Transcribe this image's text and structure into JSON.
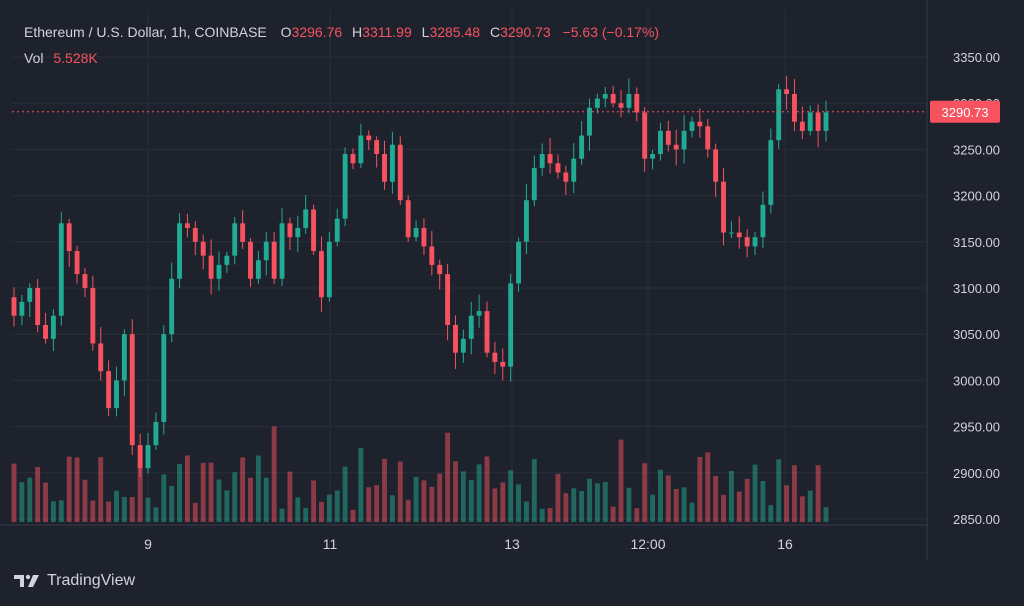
{
  "header": {
    "symbol": "Ethereum / U.S. Dollar, 1h, COINBASE",
    "o_label": "O",
    "open": "3296.76",
    "h_label": "H",
    "high": "3311.99",
    "l_label": "L",
    "low": "3285.48",
    "c_label": "C",
    "close": "3290.73",
    "change": "−5.63 (−0.17%)"
  },
  "volume": {
    "label": "Vol",
    "value": "5.528K"
  },
  "brand": {
    "name": "TradingView",
    "logo_icon": "tradingview-logo-icon"
  },
  "colors": {
    "up": "#22ab94",
    "down": "#f7525f",
    "background": "#1e222d",
    "grid": "#2a2e39",
    "text": "#d1d4dc"
  },
  "chart_data": {
    "type": "candlestick",
    "symbol": "ETH/USD",
    "interval": "1h",
    "exchange": "COINBASE",
    "y_ticks": [
      "3350.00",
      "3300.00",
      "3250.00",
      "3200.00",
      "3150.00",
      "3100.00",
      "3050.00",
      "3000.00",
      "2950.00",
      "2900.00",
      "2850.00"
    ],
    "ylim": [
      2850,
      3350
    ],
    "x_ticks": [
      "9",
      "11",
      "13",
      "12:00",
      "16"
    ],
    "last_price": "3290.73",
    "series": [
      {
        "name": "price",
        "close_path": [
          3070,
          3085,
          3100,
          3060,
          3045,
          3070,
          3170,
          3140,
          3115,
          3100,
          3040,
          3010,
          2970,
          3000,
          3050,
          2930,
          2905,
          2930,
          2955,
          3050,
          3110,
          3170,
          3165,
          3150,
          3135,
          3110,
          3125,
          3135,
          3170,
          3150,
          3110,
          3130,
          3150,
          3110,
          3170,
          3155,
          3165,
          3185,
          3140,
          3090,
          3150,
          3175,
          3245,
          3235,
          3265,
          3260,
          3245,
          3215,
          3255,
          3195,
          3155,
          3165,
          3145,
          3125,
          3115,
          3060,
          3030,
          3045,
          3070,
          3075,
          3030,
          3020,
          3015,
          3105,
          3150,
          3195,
          3230,
          3245,
          3235,
          3225,
          3215,
          3240,
          3265,
          3295,
          3305,
          3310,
          3300,
          3295,
          3310,
          3290,
          3240,
          3245,
          3270,
          3255,
          3250,
          3270,
          3280,
          3275,
          3250,
          3215,
          3160,
          3160,
          3155,
          3145,
          3155,
          3190,
          3260,
          3315,
          3310,
          3280,
          3270,
          3290,
          3270,
          3290
        ],
        "range_high": 3340,
        "range_low": 2905,
        "last": 3290.73
      }
    ],
    "volume_last": "5.528K"
  }
}
